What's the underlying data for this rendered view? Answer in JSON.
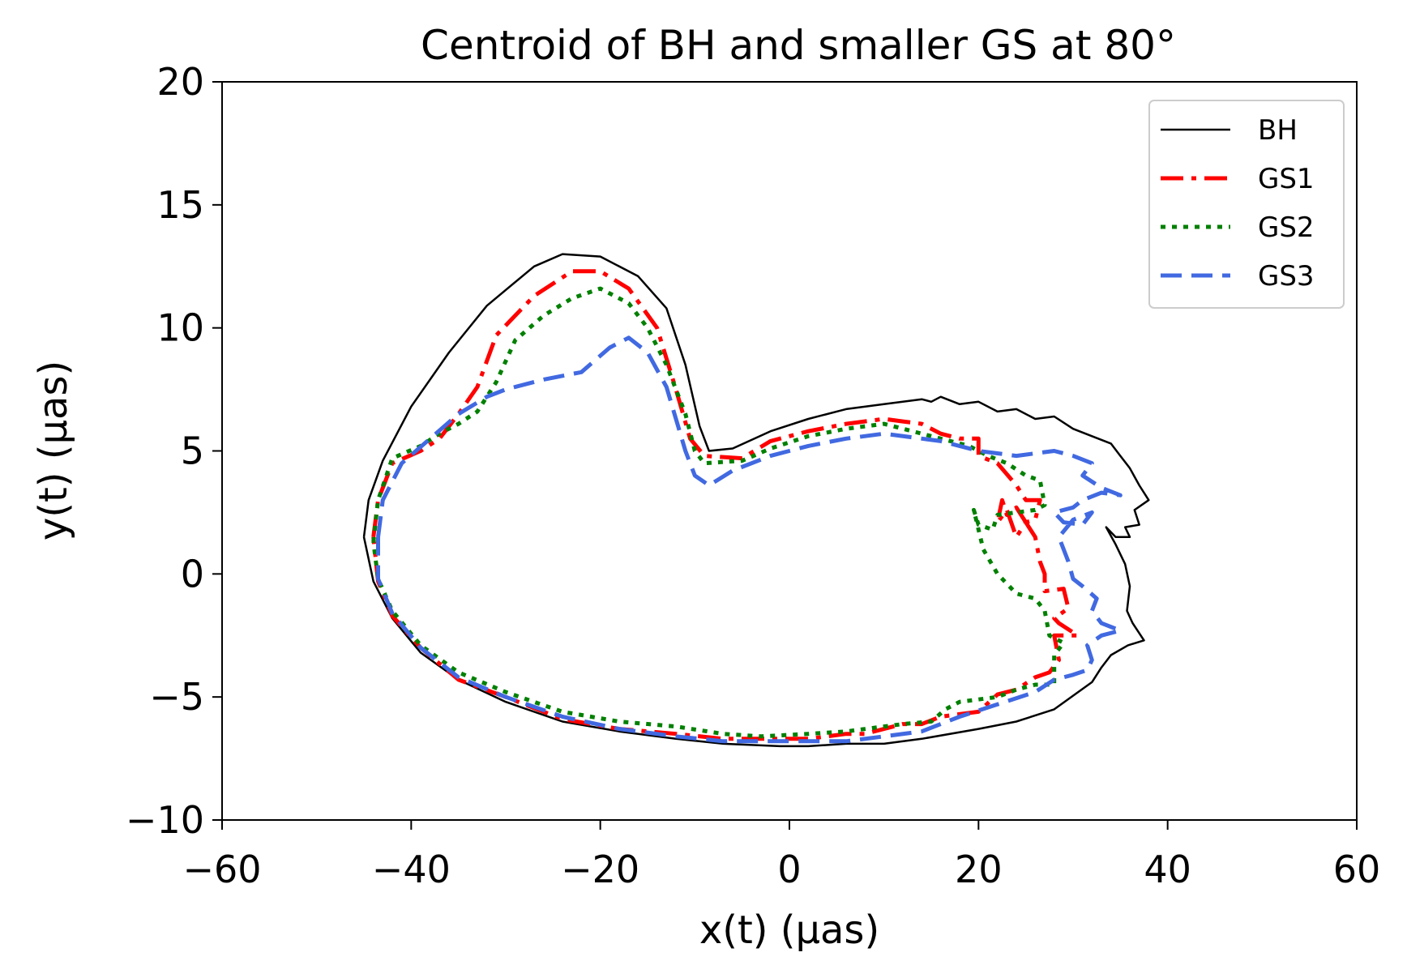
{
  "chart_data": {
    "type": "line",
    "title": "Centroid of BH and smaller GS at 80°",
    "xlabel": "x(t) (μas)",
    "ylabel": "y(t) (μas)",
    "xlim": [
      -60,
      60
    ],
    "ylim": [
      -10,
      20
    ],
    "xticks": [
      -60,
      -40,
      -20,
      0,
      20,
      40,
      60
    ],
    "yticks": [
      -10,
      -5,
      0,
      5,
      10,
      15,
      20
    ],
    "xtick_labels": [
      "−60",
      "−40",
      "−20",
      "0",
      "20",
      "40",
      "60"
    ],
    "ytick_labels": [
      "−10",
      "−5",
      "0",
      "5",
      "10",
      "15",
      "20"
    ],
    "grid": false,
    "legend_position": "top-right",
    "series": [
      {
        "name": "BH",
        "color": "#000000",
        "style": "solid",
        "points": [
          [
            -45,
            1.5
          ],
          [
            -44.5,
            3
          ],
          [
            -43,
            4.6
          ],
          [
            -40,
            6.8
          ],
          [
            -36,
            9
          ],
          [
            -32,
            10.9
          ],
          [
            -27,
            12.5
          ],
          [
            -24,
            13
          ],
          [
            -20,
            12.9
          ],
          [
            -16,
            12.1
          ],
          [
            -13,
            10.8
          ],
          [
            -11,
            8.5
          ],
          [
            -9.5,
            6
          ],
          [
            -8.5,
            5
          ],
          [
            -6,
            5.1
          ],
          [
            -2,
            5.8
          ],
          [
            2,
            6.3
          ],
          [
            6,
            6.7
          ],
          [
            10,
            6.9
          ],
          [
            14,
            7.1
          ],
          [
            15,
            7
          ],
          [
            16,
            7.2
          ],
          [
            18,
            6.9
          ],
          [
            20,
            7
          ],
          [
            22,
            6.6
          ],
          [
            24,
            6.7
          ],
          [
            26,
            6.3
          ],
          [
            28,
            6.4
          ],
          [
            30,
            5.9
          ],
          [
            32,
            5.6
          ],
          [
            34,
            5.3
          ],
          [
            35,
            4.8
          ],
          [
            36,
            4.3
          ],
          [
            37,
            3.6
          ],
          [
            38,
            3
          ],
          [
            36.5,
            2.6
          ],
          [
            37,
            2
          ],
          [
            35.5,
            1.9
          ],
          [
            36,
            1.5
          ],
          [
            34.5,
            1.5
          ],
          [
            33.5,
            1.9
          ],
          [
            34.5,
            1.2
          ],
          [
            35.5,
            0.4
          ],
          [
            36,
            -0.5
          ],
          [
            35.7,
            -1.5
          ],
          [
            36.3,
            -2
          ],
          [
            37.5,
            -2.7
          ],
          [
            35.8,
            -2.9
          ],
          [
            34,
            -3.3
          ],
          [
            33,
            -3.8
          ],
          [
            32,
            -4.4
          ],
          [
            28,
            -5.5
          ],
          [
            24,
            -6
          ],
          [
            20,
            -6.3
          ],
          [
            14,
            -6.7
          ],
          [
            10,
            -6.9
          ],
          [
            6,
            -6.9
          ],
          [
            2,
            -7
          ],
          [
            -1,
            -7
          ],
          [
            -7,
            -6.9
          ],
          [
            -12,
            -6.7
          ],
          [
            -18,
            -6.4
          ],
          [
            -24,
            -6
          ],
          [
            -30,
            -5.2
          ],
          [
            -35,
            -4.3
          ],
          [
            -39,
            -3.2
          ],
          [
            -42,
            -1.8
          ],
          [
            -44,
            -0.3
          ],
          [
            -45,
            1.5
          ]
        ]
      },
      {
        "name": "GS1",
        "color": "#ff0000",
        "style": "dashdot",
        "points": [
          [
            -44,
            1.5
          ],
          [
            -43.5,
            3
          ],
          [
            -42,
            4.5
          ],
          [
            -39,
            5
          ],
          [
            -37,
            5.5
          ],
          [
            -35,
            6.5
          ],
          [
            -33,
            7.6
          ],
          [
            -31,
            9.7
          ],
          [
            -27,
            11.3
          ],
          [
            -23,
            12.3
          ],
          [
            -20,
            12.3
          ],
          [
            -17,
            11.6
          ],
          [
            -14,
            10
          ],
          [
            -12,
            7.5
          ],
          [
            -10.5,
            5.5
          ],
          [
            -9,
            4.8
          ],
          [
            -5,
            4.7
          ],
          [
            -2,
            5.4
          ],
          [
            2,
            5.8
          ],
          [
            6,
            6.1
          ],
          [
            10,
            6.3
          ],
          [
            12,
            6.2
          ],
          [
            14,
            6.1
          ],
          [
            16,
            5.7
          ],
          [
            18,
            5.5
          ],
          [
            20,
            5.5
          ],
          [
            20,
            4.8
          ],
          [
            22,
            4.5
          ],
          [
            24,
            3.6
          ],
          [
            25,
            3
          ],
          [
            26.5,
            3
          ],
          [
            26,
            2.2
          ],
          [
            25,
            2.1
          ],
          [
            24,
            2.7
          ],
          [
            23,
            2.4
          ],
          [
            22.5,
            3
          ],
          [
            22,
            2.1
          ],
          [
            23,
            2.6
          ],
          [
            24,
            1.5
          ],
          [
            25,
            2.1
          ],
          [
            26,
            1.5
          ],
          [
            26.5,
            0.5
          ],
          [
            27,
            0
          ],
          [
            27,
            -0.7
          ],
          [
            29,
            -0.6
          ],
          [
            29.5,
            -1.4
          ],
          [
            28,
            -1.8
          ],
          [
            28.5,
            -2
          ],
          [
            30.5,
            -2.5
          ],
          [
            28,
            -2.5
          ],
          [
            28.5,
            -3.5
          ],
          [
            27.5,
            -4
          ],
          [
            26,
            -4.2
          ],
          [
            24,
            -4.7
          ],
          [
            22,
            -4.9
          ],
          [
            20,
            -5.6
          ],
          [
            18,
            -5.7
          ],
          [
            16,
            -5.8
          ],
          [
            14,
            -6.1
          ],
          [
            12,
            -6.1
          ],
          [
            10,
            -6.3
          ],
          [
            8,
            -6.5
          ],
          [
            6,
            -6.5
          ],
          [
            4,
            -6.6
          ],
          [
            2,
            -6.7
          ],
          [
            -2,
            -6.7
          ],
          [
            -7,
            -6.7
          ],
          [
            -12,
            -6.5
          ],
          [
            -18,
            -6.3
          ],
          [
            -24,
            -5.9
          ],
          [
            -30,
            -5
          ],
          [
            -35,
            -4.3
          ],
          [
            -39,
            -3
          ],
          [
            -42,
            -1.7
          ],
          [
            -43.5,
            -0.3
          ],
          [
            -44,
            1.5
          ]
        ]
      },
      {
        "name": "GS2",
        "color": "#008000",
        "style": "dotted",
        "points": [
          [
            -44,
            1.3
          ],
          [
            -43.5,
            3
          ],
          [
            -42,
            4.7
          ],
          [
            -39,
            5.2
          ],
          [
            -37,
            5.7
          ],
          [
            -35,
            6.1
          ],
          [
            -33,
            6.6
          ],
          [
            -31,
            7.8
          ],
          [
            -29,
            9.5
          ],
          [
            -26,
            10.5
          ],
          [
            -23,
            11.2
          ],
          [
            -20,
            11.6
          ],
          [
            -17,
            11
          ],
          [
            -15,
            10
          ],
          [
            -13,
            8.5
          ],
          [
            -11,
            6.5
          ],
          [
            -10,
            5
          ],
          [
            -9,
            4.5
          ],
          [
            -5,
            4.6
          ],
          [
            -2,
            5.1
          ],
          [
            2,
            5.6
          ],
          [
            6,
            5.9
          ],
          [
            10,
            6.1
          ],
          [
            14,
            5.7
          ],
          [
            16,
            5.5
          ],
          [
            19,
            5.2
          ],
          [
            21,
            4.8
          ],
          [
            23,
            4.5
          ],
          [
            25,
            4
          ],
          [
            26.5,
            3.8
          ],
          [
            27,
            2.8
          ],
          [
            26,
            2.6
          ],
          [
            24,
            2.5
          ],
          [
            22,
            2.4
          ],
          [
            21.5,
            1.8
          ],
          [
            20,
            2
          ],
          [
            19.5,
            2.6
          ],
          [
            20.5,
            1
          ],
          [
            22,
            0
          ],
          [
            24,
            -0.8
          ],
          [
            26,
            -1
          ],
          [
            27,
            -1.5
          ],
          [
            27.5,
            -2.5
          ],
          [
            29,
            -2.8
          ],
          [
            28,
            -3.3
          ],
          [
            28,
            -4.5
          ],
          [
            26,
            -4.5
          ],
          [
            24,
            -4.7
          ],
          [
            22,
            -5
          ],
          [
            20,
            -5.1
          ],
          [
            18,
            -5.2
          ],
          [
            16.5,
            -5.5
          ],
          [
            15,
            -6
          ],
          [
            12,
            -6.1
          ],
          [
            10,
            -6.2
          ],
          [
            6,
            -6.4
          ],
          [
            2,
            -6.5
          ],
          [
            -3,
            -6.6
          ],
          [
            -7,
            -6.5
          ],
          [
            -12,
            -6.2
          ],
          [
            -18,
            -6
          ],
          [
            -24,
            -5.6
          ],
          [
            -30,
            -4.8
          ],
          [
            -35,
            -4
          ],
          [
            -39,
            -2.9
          ],
          [
            -42,
            -1.5
          ],
          [
            -43.5,
            -0.2
          ],
          [
            -44,
            1.3
          ]
        ]
      },
      {
        "name": "GS3",
        "color": "#4169e1",
        "style": "dashed",
        "points": [
          [
            -43.5,
            1.5
          ],
          [
            -43,
            3
          ],
          [
            -41,
            4.5
          ],
          [
            -38,
            5.5
          ],
          [
            -35,
            6.5
          ],
          [
            -32,
            7.2
          ],
          [
            -30,
            7.5
          ],
          [
            -26,
            7.9
          ],
          [
            -22,
            8.2
          ],
          [
            -19,
            9.2
          ],
          [
            -17,
            9.6
          ],
          [
            -15,
            9
          ],
          [
            -13,
            7.6
          ],
          [
            -12,
            6.3
          ],
          [
            -11,
            5
          ],
          [
            -10,
            4
          ],
          [
            -8.5,
            3.6
          ],
          [
            -6,
            4.2
          ],
          [
            -2,
            4.8
          ],
          [
            2,
            5.2
          ],
          [
            6,
            5.5
          ],
          [
            10,
            5.7
          ],
          [
            14,
            5.5
          ],
          [
            16,
            5.4
          ],
          [
            18,
            5.2
          ],
          [
            20,
            5
          ],
          [
            22,
            4.9
          ],
          [
            24,
            4.8
          ],
          [
            26,
            4.9
          ],
          [
            28,
            5
          ],
          [
            30,
            4.8
          ],
          [
            32,
            4.5
          ],
          [
            31,
            4
          ],
          [
            33,
            3.5
          ],
          [
            35,
            3.2
          ],
          [
            33,
            3.3
          ],
          [
            31,
            3
          ],
          [
            30,
            2.7
          ],
          [
            28,
            2.5
          ],
          [
            29,
            2.1
          ],
          [
            31,
            2
          ],
          [
            32,
            2.5
          ],
          [
            30,
            2.2
          ],
          [
            28.5,
            1.5
          ],
          [
            29.5,
            0.5
          ],
          [
            30,
            -0.2
          ],
          [
            31,
            -0.5
          ],
          [
            32.5,
            -1
          ],
          [
            32,
            -1.5
          ],
          [
            33,
            -2
          ],
          [
            35,
            -2.3
          ],
          [
            33,
            -2.5
          ],
          [
            31.5,
            -2.9
          ],
          [
            32,
            -3.5
          ],
          [
            31.5,
            -3.9
          ],
          [
            30,
            -4.1
          ],
          [
            28,
            -4.3
          ],
          [
            26,
            -4.8
          ],
          [
            22,
            -5.3
          ],
          [
            18,
            -5.8
          ],
          [
            14,
            -6.4
          ],
          [
            10,
            -6.6
          ],
          [
            6,
            -6.8
          ],
          [
            2,
            -6.8
          ],
          [
            -3,
            -6.8
          ],
          [
            -7,
            -6.8
          ],
          [
            -12,
            -6.6
          ],
          [
            -18,
            -6.3
          ],
          [
            -24,
            -5.8
          ],
          [
            -30,
            -5
          ],
          [
            -35,
            -4.2
          ],
          [
            -39,
            -3
          ],
          [
            -42,
            -1.6
          ],
          [
            -43.5,
            -0.2
          ],
          [
            -43.5,
            1.5
          ]
        ]
      }
    ]
  }
}
